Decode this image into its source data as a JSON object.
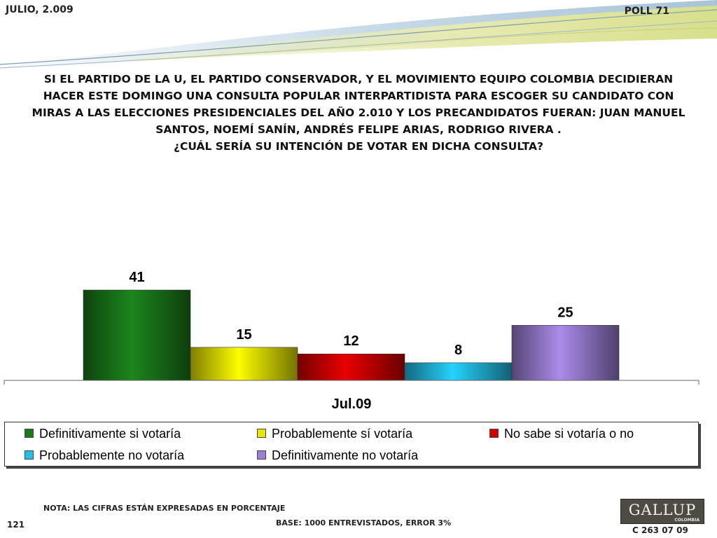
{
  "header": {
    "date": "JULIO, 2.009",
    "poll": "POLL 71"
  },
  "question": {
    "lines": [
      "SI EL PARTIDO DE LA U, EL PARTIDO CONSERVADOR, Y EL MOVIMIENTO EQUIPO COLOMBIA DECIDIERAN",
      "HACER ESTE DOMINGO UNA CONSULTA POPULAR INTERPARTIDISTA  PARA ESCOGER SU CANDIDATO CON",
      "MIRAS A LAS ELECCIONES PRESIDENCIALES DEL AÑO 2.010 Y LOS PRECANDIDATOS FUERAN: JUAN MANUEL",
      "SANTOS, NOEMÍ SANÍN, ANDRÉS FELIPE ARIAS, RODRIGO RIVERA .",
      "¿CUÁL SERÍA SU INTENCIÓN DE VOTAR EN DICHA CONSULTA?"
    ]
  },
  "chart_data": {
    "type": "bar",
    "categories": [
      "Jul.09"
    ],
    "series": [
      {
        "name": "Definitivamente si votaría",
        "values": [
          41
        ],
        "color": "#1a7a1a"
      },
      {
        "name": "Probablemente sí votaría",
        "values": [
          15
        ],
        "color": "#e6e600"
      },
      {
        "name": "No sabe si votaría o no",
        "values": [
          12
        ],
        "color": "#d40000"
      },
      {
        "name": "Probablemente no votaría",
        "values": [
          8
        ],
        "color": "#22bfe6"
      },
      {
        "name": "Definitivamente no votaría",
        "values": [
          25
        ],
        "color": "#9b7fd6"
      }
    ],
    "ylim": [
      0,
      41
    ],
    "legend_position": "bottom",
    "grid": false
  },
  "footer": {
    "note": "NOTA: LAS CIFRAS ESTÁN EXPRESADAS EN PORCENTAJE",
    "base": "BASE: 1000 ENTREVISTADOS, ERROR 3%",
    "page": "121",
    "logo_text": "GALLUP",
    "logo_subtext": "COLOMBIA",
    "code": "C 263 07 09"
  }
}
